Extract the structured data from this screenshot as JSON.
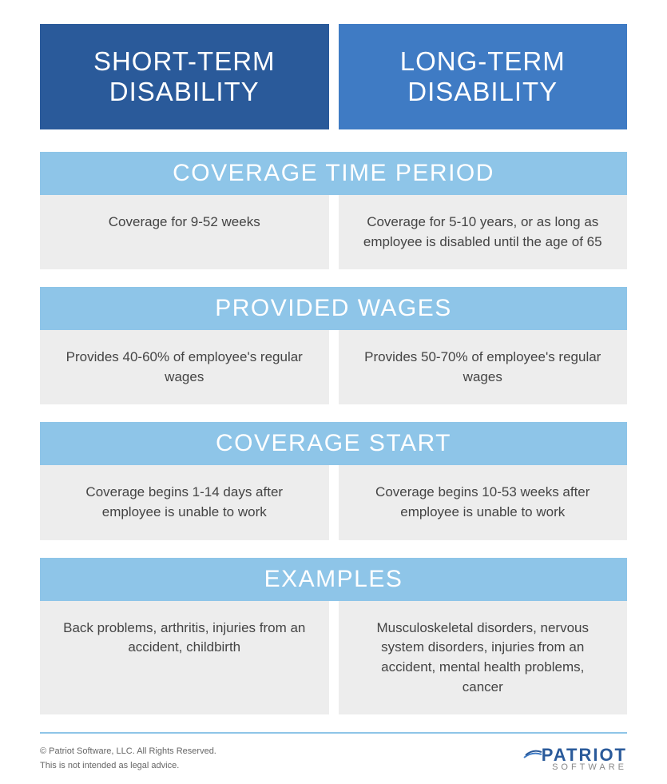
{
  "colors": {
    "header_left_bg": "#2a5a9a",
    "header_right_bg": "#3f7bc4",
    "section_bg": "#8ec5e8",
    "cell_bg": "#ededed",
    "text_white": "#ffffff",
    "text_body": "#444444",
    "text_footer": "#666666",
    "logo_color": "#2a5a9a"
  },
  "typography": {
    "header_fontsize": 33,
    "section_fontsize": 30,
    "body_fontsize": 17,
    "footer_fontsize": 11
  },
  "headers": {
    "left": "SHORT-TERM\nDISABILITY",
    "right": "LONG-TERM\nDISABILITY"
  },
  "sections": [
    {
      "title": "COVERAGE TIME PERIOD",
      "left": "Coverage for 9-52 weeks",
      "right": "Coverage for 5-10 years, or as long as employee is disabled until the age of 65"
    },
    {
      "title": "PROVIDED WAGES",
      "left": "Provides 40-60% of employee's regular wages",
      "right": "Provides 50-70% of employee's regular wages"
    },
    {
      "title": "COVERAGE START",
      "left": "Coverage begins 1-14 days after employee is unable to work",
      "right": "Coverage begins 10-53 weeks after employee is unable to work"
    },
    {
      "title": "EXAMPLES",
      "left": "Back problems, arthritis, injuries from an accident, childbirth",
      "right": "Musculoskeletal disorders, nervous system disorders, injuries from an accident, mental health problems, cancer"
    }
  ],
  "footer": {
    "line1": "© Patriot Software, LLC. All Rights Reserved.",
    "line2": "This is not intended as legal advice.",
    "logo_main": "PATRIOT",
    "logo_sub": "SOFTWARE"
  }
}
